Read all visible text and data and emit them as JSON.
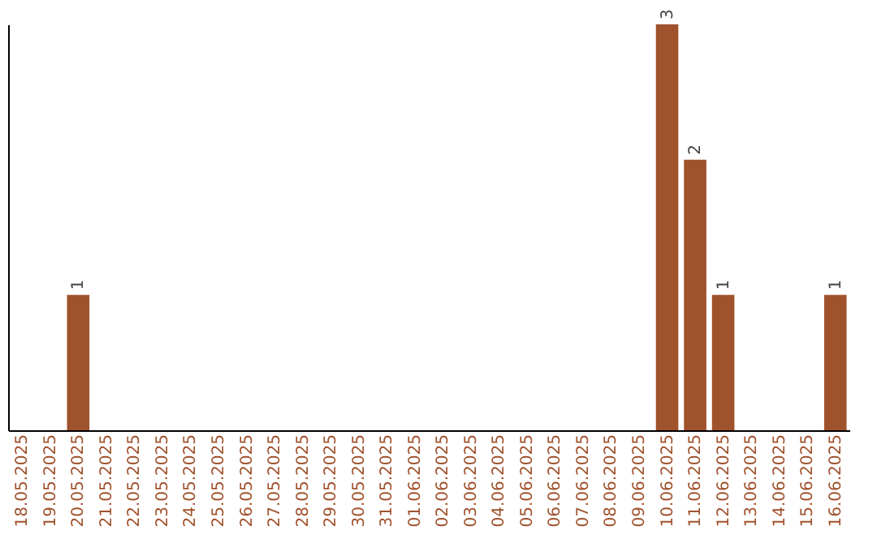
{
  "chart_data": {
    "type": "bar",
    "categories": [
      "18.05.2025",
      "19.05.2025",
      "20.05.2025",
      "21.05.2025",
      "22.05.2025",
      "23.05.2025",
      "24.05.2025",
      "25.05.2025",
      "26.05.2025",
      "27.05.2025",
      "28.05.2025",
      "29.05.2025",
      "30.05.2025",
      "31.05.2025",
      "01.06.2025",
      "02.06.2025",
      "03.06.2025",
      "04.06.2025",
      "05.06.2025",
      "06.06.2025",
      "07.06.2025",
      "08.06.2025",
      "09.06.2025",
      "10.06.2025",
      "11.06.2025",
      "12.06.2025",
      "13.06.2025",
      "14.06.2025",
      "15.06.2025",
      "16.06.2025"
    ],
    "values": [
      0,
      0,
      1,
      0,
      0,
      0,
      0,
      0,
      0,
      0,
      0,
      0,
      0,
      0,
      0,
      0,
      0,
      0,
      0,
      0,
      0,
      0,
      0,
      3,
      2,
      1,
      0,
      0,
      0,
      1
    ],
    "value_labels": [
      null,
      null,
      "1",
      null,
      null,
      null,
      null,
      null,
      null,
      null,
      null,
      null,
      null,
      null,
      null,
      null,
      null,
      null,
      null,
      null,
      null,
      null,
      null,
      "3",
      "2",
      "1",
      null,
      null,
      null,
      "1"
    ],
    "color": "#a0522d",
    "grid": false,
    "tick_labels": "x"
  }
}
